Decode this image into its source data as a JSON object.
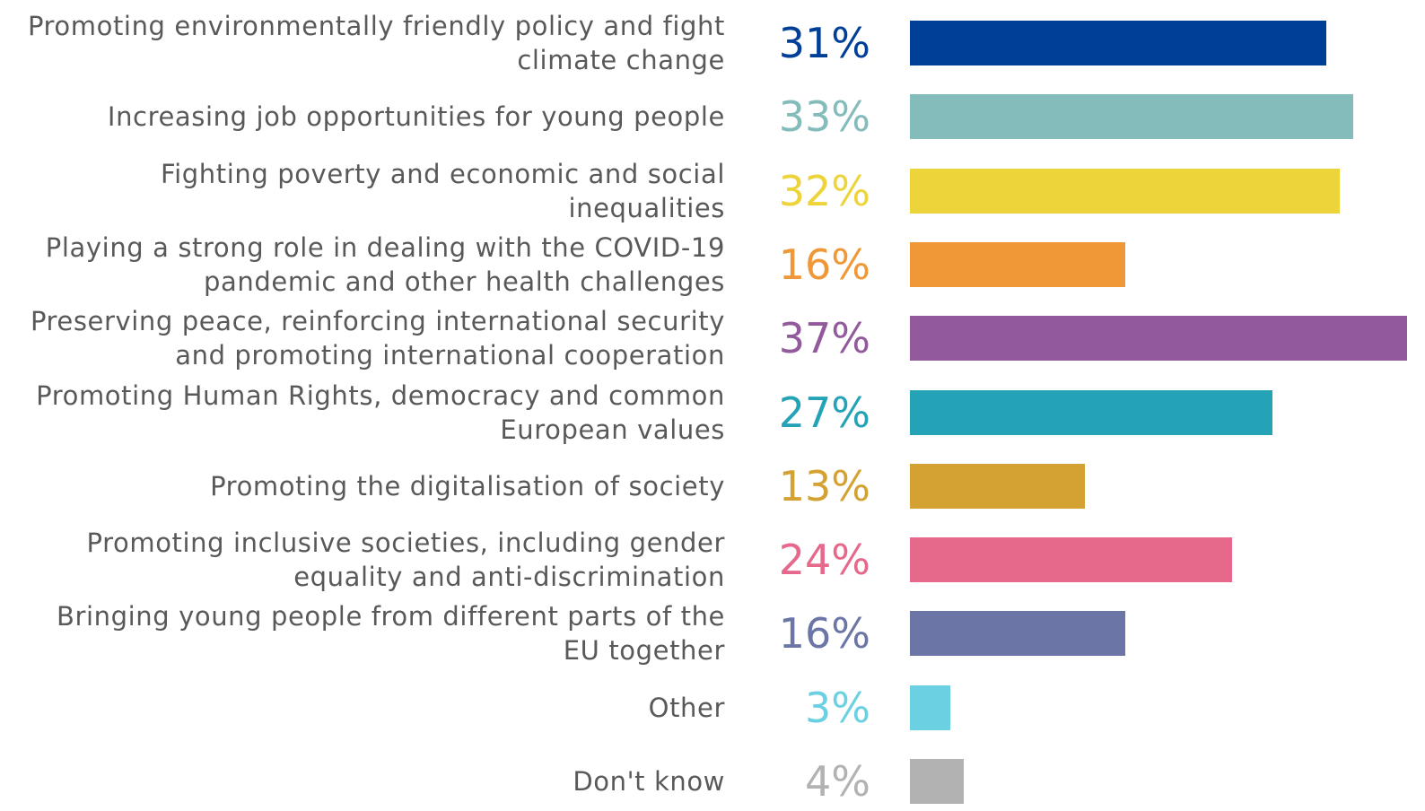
{
  "chart_data": {
    "type": "bar",
    "orientation": "horizontal",
    "categories": [
      "Promoting environmentally friendly policy and fight climate change",
      "Increasing job opportunities for young people",
      "Fighting poverty and economic and social inequalities",
      "Playing a strong role in dealing with the COVID-19 pandemic and other health challenges",
      "Preserving peace, reinforcing international security and promoting international cooperation",
      "Promoting Human Rights, democracy and common European values",
      "Promoting the digitalisation of society",
      "Promoting inclusive societies, including gender equality and anti-discrimination",
      "Bringing young people from different parts of the EU together",
      "Other",
      "Don't know"
    ],
    "values": [
      31,
      33,
      32,
      16,
      37,
      27,
      13,
      24,
      16,
      3,
      4
    ],
    "value_labels": [
      "31%",
      "33%",
      "32%",
      "16%",
      "37%",
      "27%",
      "13%",
      "24%",
      "16%",
      "3%",
      "4%"
    ],
    "colors": [
      "#003f98",
      "#84bbbb",
      "#ecd43a",
      "#f09737",
      "#92599c",
      "#24a2b6",
      "#d4a233",
      "#e6698b",
      "#6b76a6",
      "#6bd0e1",
      "#b2b2b2"
    ]
  }
}
